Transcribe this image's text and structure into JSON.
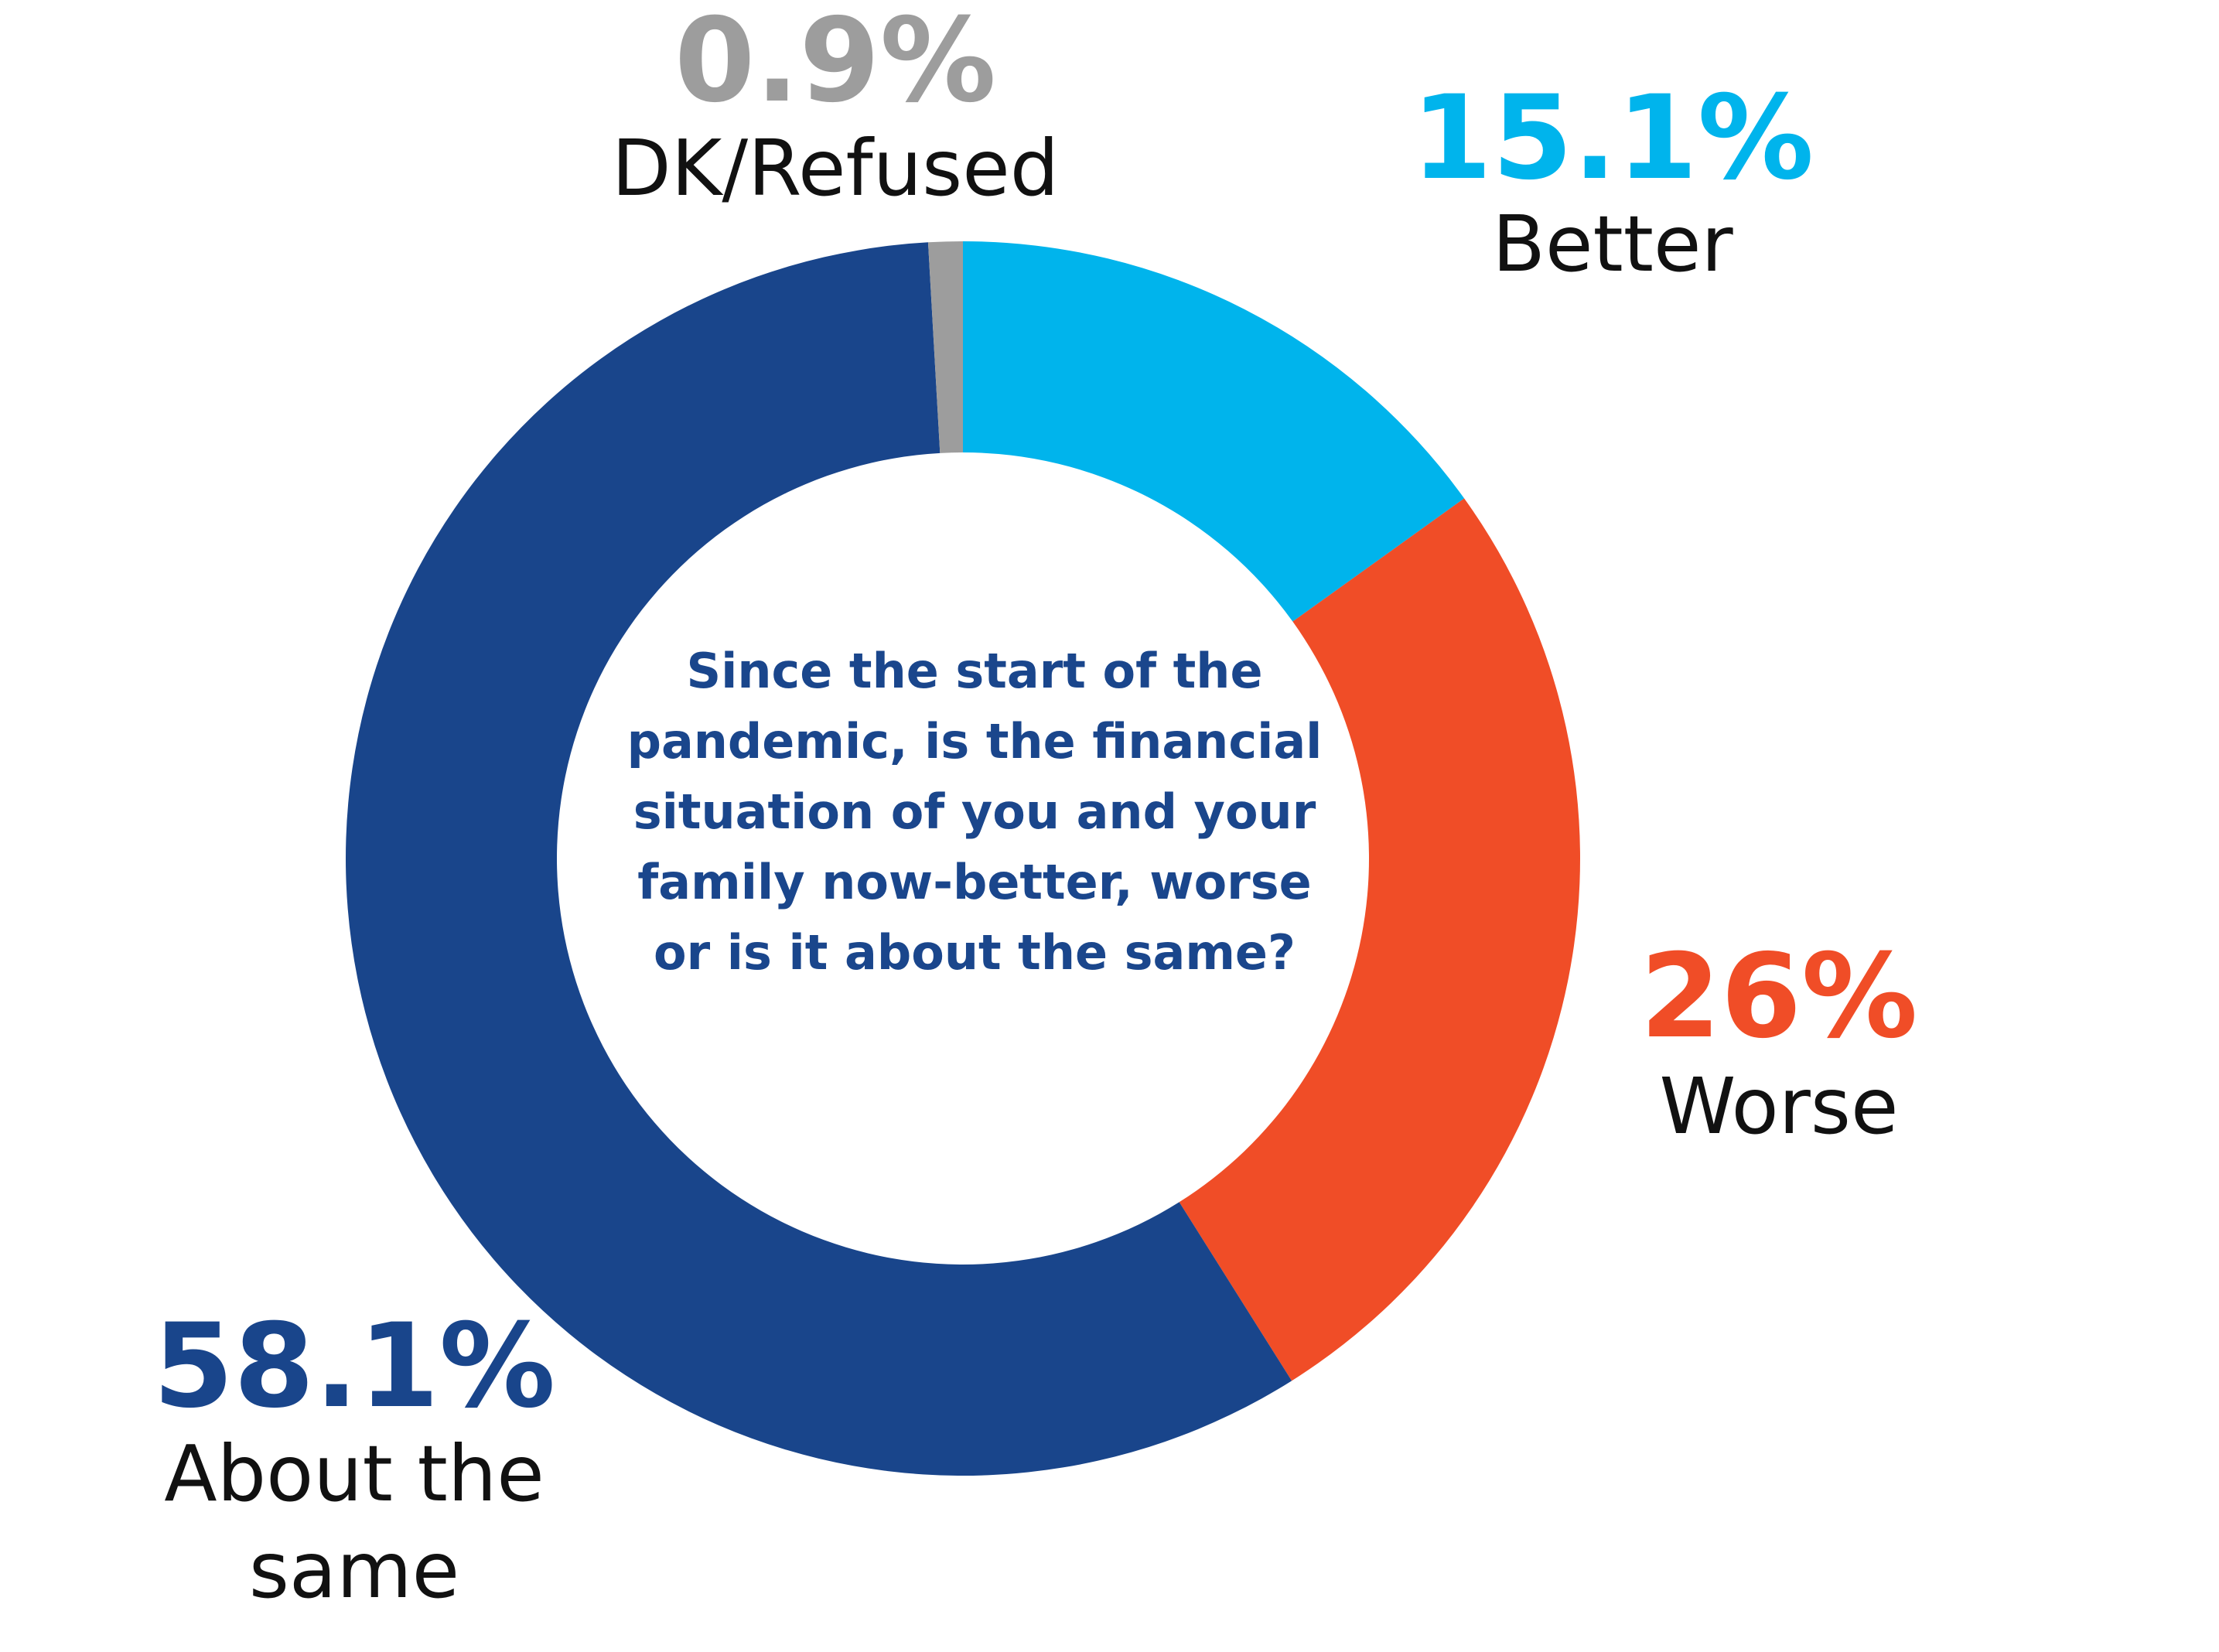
{
  "chart_data": {
    "type": "pie",
    "variant": "donut",
    "center_text": "Since the start of the pandemic, is the financial situation of you and your family now-better, worse or is it about the same?",
    "slices": [
      {
        "label": "Better",
        "value": 15.1,
        "value_label": "15.1%",
        "color": "#00b4ec"
      },
      {
        "label": "Worse",
        "value": 26,
        "value_label": "26%",
        "color": "#f04d27"
      },
      {
        "label": "About the same",
        "value": 58.1,
        "value_label": "58.1%",
        "color": "#19458b"
      },
      {
        "label": "DK/Refused",
        "value": 0.9,
        "value_label": "0.9%",
        "color": "#9d9d9d"
      }
    ],
    "start_angle": "12 o'clock",
    "direction": "clockwise",
    "legend": "none"
  }
}
